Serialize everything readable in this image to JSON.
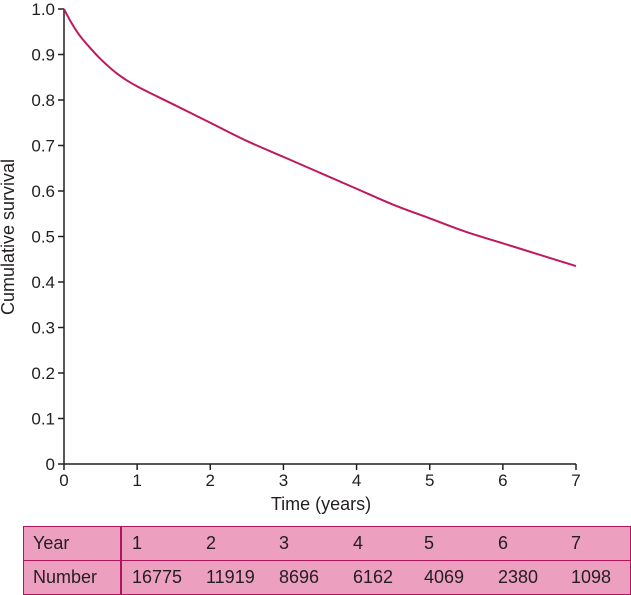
{
  "chart_data": {
    "type": "line",
    "title": "",
    "xlabel": "Time (years)",
    "ylabel": "Cumulative survival",
    "xlim": [
      0,
      7
    ],
    "ylim": [
      0,
      1.0
    ],
    "x_ticks": [
      "0",
      "1",
      "2",
      "3",
      "4",
      "5",
      "6",
      "7"
    ],
    "y_ticks": [
      "0",
      "0.1",
      "0.2",
      "0.3",
      "0.4",
      "0.5",
      "0.6",
      "0.7",
      "0.8",
      "0.9",
      "1.0"
    ],
    "grid": false,
    "legend": "none",
    "colors": {
      "line": "#c0185e",
      "axis": "#231f20",
      "table_fill": "#ec9fbe",
      "table_border": "#b0155a"
    },
    "series": [
      {
        "x": [
          0,
          0.1,
          0.2,
          0.3,
          0.5,
          0.75,
          1,
          1.5,
          2,
          2.5,
          3,
          3.5,
          4,
          4.5,
          5,
          5.5,
          6,
          6.5,
          7
        ],
        "values": [
          1.0,
          0.97,
          0.945,
          0.925,
          0.89,
          0.855,
          0.83,
          0.79,
          0.75,
          0.71,
          0.675,
          0.64,
          0.605,
          0.57,
          0.54,
          0.51,
          0.485,
          0.46,
          0.435
        ]
      }
    ]
  },
  "risk_table": {
    "row_headers": [
      "Year",
      "Number"
    ],
    "years": [
      "1",
      "2",
      "3",
      "4",
      "5",
      "6",
      "7"
    ],
    "numbers": [
      "16775",
      "11919",
      "8696",
      "6162",
      "4069",
      "2380",
      "1098"
    ]
  }
}
